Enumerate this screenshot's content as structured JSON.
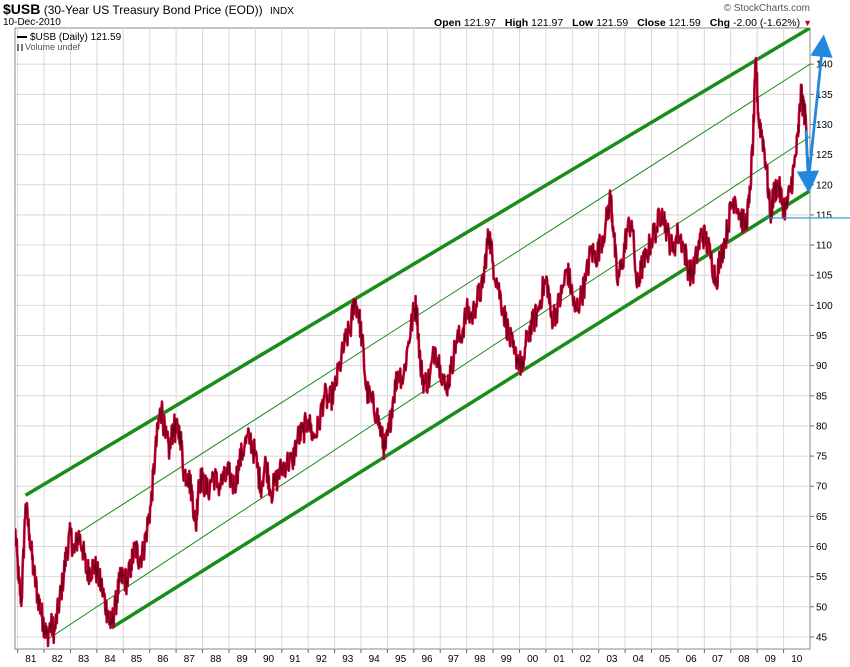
{
  "header": {
    "symbol": "$USB",
    "description": "(30-Year US Treasury Bond Price (EOD))",
    "index": "INDX",
    "date": "10-Dec-2010",
    "brand": "© StockCharts.com",
    "open_label": "Open",
    "open": "121.97",
    "high_label": "High",
    "high": "121.97",
    "low_label": "Low",
    "low": "121.59",
    "close_label": "Close",
    "close": "121.59",
    "chg_label": "Chg",
    "chg": "-2.00 (-1.62%)",
    "chg_arrow": "▼"
  },
  "legend": {
    "series_label": "$USB (Daily) 121.59",
    "volume_label": "Volume undef"
  },
  "chart_data": {
    "type": "line",
    "title": "$USB (30-Year US Treasury Bond Price (EOD))",
    "xlabel": "",
    "ylabel": "",
    "x_range": [
      1980.9,
      2011.0
    ],
    "ylim": [
      43,
      146
    ],
    "y_ticks": [
      45,
      50,
      55,
      60,
      65,
      70,
      75,
      80,
      85,
      90,
      95,
      100,
      105,
      110,
      115,
      120,
      125,
      130,
      135,
      140
    ],
    "x_tick_labels": [
      "81",
      "82",
      "83",
      "84",
      "85",
      "86",
      "87",
      "88",
      "89",
      "90",
      "91",
      "92",
      "93",
      "94",
      "95",
      "96",
      "97",
      "98",
      "99",
      "00",
      "01",
      "02",
      "03",
      "04",
      "05",
      "06",
      "07",
      "08",
      "09",
      "10"
    ],
    "x_tick_years": [
      1981,
      1982,
      1983,
      1984,
      1985,
      1986,
      1987,
      1988,
      1989,
      1990,
      1991,
      1992,
      1993,
      1994,
      1995,
      1996,
      1997,
      1998,
      1999,
      2000,
      2001,
      2002,
      2003,
      2004,
      2005,
      2006,
      2007,
      2008,
      2009,
      2010
    ],
    "series": [
      {
        "name": "$USB (Daily)",
        "color": "#cc0033",
        "points": [
          [
            1980.9,
            63
          ],
          [
            1981.05,
            54
          ],
          [
            1981.15,
            51
          ],
          [
            1981.3,
            67
          ],
          [
            1981.45,
            62
          ],
          [
            1981.6,
            56
          ],
          [
            1981.75,
            52
          ],
          [
            1981.9,
            49
          ],
          [
            1982.0,
            47
          ],
          [
            1982.1,
            45
          ],
          [
            1982.25,
            47
          ],
          [
            1982.4,
            46
          ],
          [
            1982.55,
            50
          ],
          [
            1982.7,
            54
          ],
          [
            1982.85,
            59
          ],
          [
            1983.0,
            62
          ],
          [
            1983.15,
            59
          ],
          [
            1983.3,
            62
          ],
          [
            1983.45,
            60
          ],
          [
            1983.6,
            56
          ],
          [
            1983.75,
            56
          ],
          [
            1983.9,
            57
          ],
          [
            1984.05,
            55
          ],
          [
            1984.2,
            53
          ],
          [
            1984.35,
            50
          ],
          [
            1984.45,
            48
          ],
          [
            1984.55,
            47
          ],
          [
            1984.7,
            50
          ],
          [
            1984.85,
            54
          ],
          [
            1985.0,
            55
          ],
          [
            1985.15,
            54
          ],
          [
            1985.3,
            57
          ],
          [
            1985.45,
            60
          ],
          [
            1985.6,
            58
          ],
          [
            1985.75,
            59
          ],
          [
            1985.9,
            63
          ],
          [
            1986.05,
            67
          ],
          [
            1986.2,
            75
          ],
          [
            1986.35,
            81
          ],
          [
            1986.45,
            83
          ],
          [
            1986.6,
            78
          ],
          [
            1986.75,
            76
          ],
          [
            1986.9,
            80
          ],
          [
            1987.0,
            79
          ],
          [
            1987.15,
            79
          ],
          [
            1987.3,
            72
          ],
          [
            1987.45,
            72
          ],
          [
            1987.6,
            69
          ],
          [
            1987.75,
            63
          ],
          [
            1987.85,
            71
          ],
          [
            1988.0,
            71
          ],
          [
            1988.2,
            69
          ],
          [
            1988.4,
            72
          ],
          [
            1988.6,
            70
          ],
          [
            1988.8,
            71
          ],
          [
            1989.0,
            72
          ],
          [
            1989.2,
            70
          ],
          [
            1989.4,
            74
          ],
          [
            1989.6,
            77
          ],
          [
            1989.8,
            78
          ],
          [
            1990.0,
            75
          ],
          [
            1990.2,
            70
          ],
          [
            1990.4,
            74
          ],
          [
            1990.6,
            69
          ],
          [
            1990.8,
            71
          ],
          [
            1991.0,
            73
          ],
          [
            1991.2,
            74
          ],
          [
            1991.4,
            74
          ],
          [
            1991.6,
            78
          ],
          [
            1991.8,
            79
          ],
          [
            1992.0,
            81
          ],
          [
            1992.2,
            78
          ],
          [
            1992.4,
            80
          ],
          [
            1992.6,
            85
          ],
          [
            1992.8,
            84
          ],
          [
            1993.0,
            86
          ],
          [
            1993.2,
            90
          ],
          [
            1993.4,
            94
          ],
          [
            1993.6,
            96
          ],
          [
            1993.75,
            101
          ],
          [
            1993.9,
            99
          ],
          [
            1994.05,
            94
          ],
          [
            1994.2,
            86
          ],
          [
            1994.4,
            84
          ],
          [
            1994.6,
            82
          ],
          [
            1994.8,
            78
          ],
          [
            1994.9,
            76
          ],
          [
            1995.05,
            79
          ],
          [
            1995.2,
            84
          ],
          [
            1995.4,
            89
          ],
          [
            1995.6,
            88
          ],
          [
            1995.8,
            94
          ],
          [
            1996.0,
            99
          ],
          [
            1996.1,
            100
          ],
          [
            1996.25,
            90
          ],
          [
            1996.4,
            87
          ],
          [
            1996.6,
            88
          ],
          [
            1996.8,
            93
          ],
          [
            1997.0,
            90
          ],
          [
            1997.2,
            86
          ],
          [
            1997.4,
            89
          ],
          [
            1997.6,
            94
          ],
          [
            1997.8,
            95
          ],
          [
            1998.0,
            99
          ],
          [
            1998.2,
            98
          ],
          [
            1998.4,
            101
          ],
          [
            1998.6,
            103
          ],
          [
            1998.75,
            109
          ],
          [
            1998.85,
            112
          ],
          [
            1999.0,
            107
          ],
          [
            1999.2,
            103
          ],
          [
            1999.4,
            99
          ],
          [
            1999.6,
            95
          ],
          [
            1999.8,
            92
          ],
          [
            2000.0,
            91
          ],
          [
            2000.1,
            89
          ],
          [
            2000.3,
            95
          ],
          [
            2000.5,
            97
          ],
          [
            2000.7,
            99
          ],
          [
            2000.9,
            103
          ],
          [
            2001.05,
            104
          ],
          [
            2001.2,
            98
          ],
          [
            2001.4,
            99
          ],
          [
            2001.6,
            102
          ],
          [
            2001.8,
            106
          ],
          [
            2001.95,
            103
          ],
          [
            2002.1,
            99
          ],
          [
            2002.3,
            101
          ],
          [
            2002.5,
            104
          ],
          [
            2002.7,
            109
          ],
          [
            2002.9,
            108
          ],
          [
            2003.05,
            110
          ],
          [
            2003.25,
            113
          ],
          [
            2003.45,
            118
          ],
          [
            2003.55,
            113
          ],
          [
            2003.7,
            104
          ],
          [
            2003.9,
            107
          ],
          [
            2004.05,
            112
          ],
          [
            2004.25,
            114
          ],
          [
            2004.45,
            103
          ],
          [
            2004.6,
            106
          ],
          [
            2004.8,
            108
          ],
          [
            2005.0,
            111
          ],
          [
            2005.2,
            113
          ],
          [
            2005.4,
            116
          ],
          [
            2005.6,
            112
          ],
          [
            2005.8,
            109
          ],
          [
            2006.0,
            112
          ],
          [
            2006.2,
            110
          ],
          [
            2006.4,
            106
          ],
          [
            2006.55,
            105
          ],
          [
            2006.7,
            108
          ],
          [
            2006.9,
            112
          ],
          [
            2007.05,
            111
          ],
          [
            2007.25,
            108
          ],
          [
            2007.45,
            104
          ],
          [
            2007.6,
            108
          ],
          [
            2007.8,
            111
          ],
          [
            2008.0,
            116
          ],
          [
            2008.15,
            118
          ],
          [
            2008.35,
            115
          ],
          [
            2008.55,
            113
          ],
          [
            2008.7,
            117
          ],
          [
            2008.85,
            128
          ],
          [
            2008.95,
            141
          ],
          [
            2009.05,
            131
          ],
          [
            2009.2,
            128
          ],
          [
            2009.35,
            123
          ],
          [
            2009.5,
            115
          ],
          [
            2009.65,
            119
          ],
          [
            2009.8,
            120
          ],
          [
            2009.95,
            117
          ],
          [
            2010.1,
            116
          ],
          [
            2010.25,
            119
          ],
          [
            2010.4,
            123
          ],
          [
            2010.55,
            128
          ],
          [
            2010.65,
            135
          ],
          [
            2010.75,
            133
          ],
          [
            2010.85,
            130
          ],
          [
            2010.95,
            122
          ]
        ]
      }
    ],
    "trendlines": [
      {
        "name": "upper-channel",
        "color": "#1a8c1a",
        "weight": "thick",
        "points": [
          [
            1981.3,
            68.5
          ],
          [
            2011.0,
            146
          ]
        ]
      },
      {
        "name": "inner-upper",
        "color": "#1a8c1a",
        "weight": "thin",
        "points": [
          [
            1983.2,
            62
          ],
          [
            2011.0,
            140
          ]
        ]
      },
      {
        "name": "inner-lower",
        "color": "#1a8c1a",
        "weight": "thin",
        "points": [
          [
            1982.1,
            44.5
          ],
          [
            2011.0,
            128
          ]
        ]
      },
      {
        "name": "lower-channel",
        "color": "#1a8c1a",
        "weight": "thick",
        "points": [
          [
            1984.55,
            46.5
          ],
          [
            2011.0,
            119
          ]
        ]
      }
    ],
    "support_level": {
      "value": 114.5,
      "from": 2009.3,
      "to": 2011.0,
      "color": "#2299bb"
    },
    "annotation_arrows": [
      {
        "name": "down-arrow",
        "color": "#2288dd",
        "from": [
          2010.85,
          129
        ],
        "to": [
          2010.95,
          119.5
        ]
      },
      {
        "name": "up-arrow",
        "color": "#2288dd",
        "from": [
          2010.95,
          121
        ],
        "to": [
          2011.5,
          144
        ]
      }
    ]
  }
}
